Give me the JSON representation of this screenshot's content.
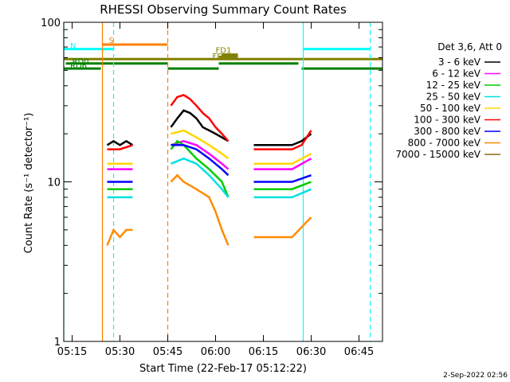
{
  "chart_data": {
    "type": "line",
    "title": "RHESSI Observing Summary Count Rates",
    "xlabel": "Start Time (22-Feb-17 05:12:22)",
    "ylabel": "Count Rate (s⁻¹ detector⁻¹)",
    "x_ticks": [
      "05:15",
      "05:30",
      "05:45",
      "06:00",
      "06:15",
      "06:30",
      "06:45"
    ],
    "xlim": [
      "05:12:22",
      "06:52:22"
    ],
    "ylim": [
      1,
      100
    ],
    "yscale": "log",
    "y_ticks": [
      "1",
      "10",
      "100"
    ],
    "legend_header": "Det 3,6, Att 0",
    "legend_position": "right",
    "series": [
      {
        "name": "3 - 6 keV",
        "color": "#000000",
        "segments": [
          [
            [
              "05:26",
              17
            ],
            [
              "05:28",
              18
            ],
            [
              "05:30",
              17
            ],
            [
              "05:32",
              18
            ],
            [
              "05:34",
              17
            ]
          ],
          [
            [
              "05:46",
              22
            ],
            [
              "05:48",
              25
            ],
            [
              "05:50",
              28
            ],
            [
              "05:52",
              27
            ],
            [
              "05:54",
              25
            ],
            [
              "05:56",
              22
            ],
            [
              "05:58",
              21
            ],
            [
              "06:00",
              20
            ],
            [
              "06:02",
              19
            ],
            [
              "06:04",
              18
            ]
          ],
          [
            [
              "06:12",
              17
            ],
            [
              "06:15",
              17
            ],
            [
              "06:18",
              17
            ],
            [
              "06:21",
              17
            ],
            [
              "06:24",
              17
            ],
            [
              "06:27",
              18
            ],
            [
              "06:30",
              20
            ]
          ]
        ]
      },
      {
        "name": "6 - 12 keV",
        "color": "#ff00ff",
        "segments": [
          [
            [
              "05:26",
              12
            ],
            [
              "05:30",
              12
            ],
            [
              "05:34",
              12
            ]
          ],
          [
            [
              "05:46",
              17
            ],
            [
              "05:50",
              18
            ],
            [
              "05:54",
              17
            ],
            [
              "05:58",
              15
            ],
            [
              "06:02",
              13
            ],
            [
              "06:04",
              12
            ]
          ],
          [
            [
              "06:12",
              12
            ],
            [
              "06:18",
              12
            ],
            [
              "06:24",
              12
            ],
            [
              "06:30",
              14
            ]
          ]
        ]
      },
      {
        "name": "12 - 25 keV",
        "color": "#00cc00",
        "segments": [
          [
            [
              "05:26",
              9
            ],
            [
              "05:30",
              9
            ],
            [
              "05:34",
              9
            ]
          ],
          [
            [
              "05:46",
              16
            ],
            [
              "05:48",
              18
            ],
            [
              "05:50",
              17
            ],
            [
              "05:54",
              14
            ],
            [
              "05:58",
              12
            ],
            [
              "06:02",
              10
            ],
            [
              "06:04",
              8
            ]
          ],
          [
            [
              "06:12",
              9
            ],
            [
              "06:18",
              9
            ],
            [
              "06:24",
              9
            ],
            [
              "06:30",
              10
            ]
          ]
        ]
      },
      {
        "name": "25 - 50 keV",
        "color": "#00e0e0",
        "segments": [
          [
            [
              "05:26",
              8
            ],
            [
              "05:30",
              8
            ],
            [
              "05:34",
              8
            ]
          ],
          [
            [
              "05:46",
              13
            ],
            [
              "05:50",
              14
            ],
            [
              "05:54",
              13
            ],
            [
              "05:58",
              11
            ],
            [
              "06:02",
              9
            ],
            [
              "06:04",
              8
            ]
          ],
          [
            [
              "06:12",
              8
            ],
            [
              "06:18",
              8
            ],
            [
              "06:24",
              8
            ],
            [
              "06:30",
              9
            ]
          ]
        ]
      },
      {
        "name": "50 - 100 keV",
        "color": "#ffd700",
        "segments": [
          [
            [
              "05:26",
              13
            ],
            [
              "05:30",
              13
            ],
            [
              "05:34",
              13
            ]
          ],
          [
            [
              "05:46",
              20
            ],
            [
              "05:50",
              21
            ],
            [
              "05:54",
              19
            ],
            [
              "05:58",
              17
            ],
            [
              "06:02",
              15
            ],
            [
              "06:04",
              14
            ]
          ],
          [
            [
              "06:12",
              13
            ],
            [
              "06:18",
              13
            ],
            [
              "06:24",
              13
            ],
            [
              "06:30",
              15
            ]
          ]
        ]
      },
      {
        "name": "100 - 300 keV",
        "color": "#ff0000",
        "segments": [
          [
            [
              "05:26",
              16
            ],
            [
              "05:30",
              16
            ],
            [
              "05:34",
              17
            ]
          ],
          [
            [
              "05:46",
              30
            ],
            [
              "05:48",
              34
            ],
            [
              "05:50",
              35
            ],
            [
              "05:52",
              33
            ],
            [
              "05:54",
              30
            ],
            [
              "05:56",
              27
            ],
            [
              "05:58",
              25
            ],
            [
              "06:00",
              22
            ],
            [
              "06:02",
              20
            ],
            [
              "06:04",
              18
            ]
          ],
          [
            [
              "06:12",
              16
            ],
            [
              "06:18",
              16
            ],
            [
              "06:24",
              16
            ],
            [
              "06:27",
              17
            ],
            [
              "06:30",
              21
            ]
          ]
        ]
      },
      {
        "name": "300 - 800 keV",
        "color": "#0000ff",
        "segments": [
          [
            [
              "05:26",
              10
            ],
            [
              "05:30",
              10
            ],
            [
              "05:34",
              10
            ]
          ],
          [
            [
              "05:46",
              17
            ],
            [
              "05:50",
              17
            ],
            [
              "05:54",
              16
            ],
            [
              "05:58",
              14
            ],
            [
              "06:02",
              12
            ],
            [
              "06:04",
              11
            ]
          ],
          [
            [
              "06:12",
              10
            ],
            [
              "06:18",
              10
            ],
            [
              "06:24",
              10
            ],
            [
              "06:30",
              11
            ]
          ]
        ]
      },
      {
        "name": "800 - 7000 keV",
        "color": "#ff8c00",
        "segments": [
          [
            [
              "05:26",
              4
            ],
            [
              "05:28",
              5
            ],
            [
              "05:30",
              4.5
            ],
            [
              "05:32",
              5
            ],
            [
              "05:34",
              5
            ]
          ],
          [
            [
              "05:46",
              10
            ],
            [
              "05:48",
              11
            ],
            [
              "05:50",
              10
            ],
            [
              "05:54",
              9
            ],
            [
              "05:58",
              8
            ],
            [
              "06:00",
              6.5
            ],
            [
              "06:02",
              5
            ],
            [
              "06:04",
              4
            ]
          ],
          [
            [
              "06:12",
              4.5
            ],
            [
              "06:18",
              4.5
            ],
            [
              "06:24",
              4.5
            ],
            [
              "06:30",
              6
            ]
          ]
        ]
      },
      {
        "name": "7000 - 15000 keV",
        "color": "#8b6914",
        "segments": []
      }
    ],
    "flag_bars": [
      {
        "label": "S",
        "color": "#ff8000",
        "start": "05:24:30",
        "end": "05:45:00",
        "y": 40,
        "label_y": 37
      },
      {
        "label": "N",
        "color": "#00ffff",
        "start": "05:12:22",
        "end": "05:28:00",
        "y": 48,
        "label_y": 47
      },
      {
        "label": "",
        "color": "#00ffff",
        "start": "06:27:30",
        "end": "06:48:30",
        "y": 48,
        "label_y": 0
      },
      {
        "label": "FD1",
        "color": "#808000",
        "start": "06:02:00",
        "end": "06:07:00",
        "y": 58,
        "label_y": 55
      },
      {
        "label": "FD2",
        "color": "#808000",
        "start": "06:01:00",
        "end": "06:07:00",
        "y": 62,
        "label_y": 66
      },
      {
        "label": "",
        "color": "#808000",
        "start": "05:12:22",
        "end": "06:52:22",
        "y": 66,
        "label_y": 0
      },
      {
        "label": "RD0",
        "color": "#008000",
        "start": "05:13:00",
        "end": "05:45:00",
        "y": 74,
        "label_y": 75
      },
      {
        "label": "",
        "color": "#008000",
        "start": "06:01:00",
        "end": "06:26:00",
        "y": 74,
        "label_y": 0
      },
      {
        "label": "RD6",
        "color": "#008000",
        "start": "05:12:22",
        "end": "05:24:00",
        "y": 83,
        "label_y": 83
      },
      {
        "label": "",
        "color": "#008000",
        "start": "05:45:00",
        "end": "06:01:00",
        "y": 83,
        "label_y": 0
      },
      {
        "label": "",
        "color": "#008000",
        "start": "06:27:00",
        "end": "06:52:22",
        "y": 83,
        "label_y": 0
      }
    ],
    "vertical_markers": [
      {
        "time": "05:12:22",
        "color": "#00ffff",
        "dashed": false
      },
      {
        "time": "05:24:30",
        "color": "#ff8000",
        "dashed": false
      },
      {
        "time": "05:28:00",
        "color": "#00ffff",
        "dashed": true
      },
      {
        "time": "05:45:00",
        "color": "#ff8000",
        "dashed": true
      },
      {
        "time": "06:27:30",
        "color": "#00ffff",
        "dashed": false
      },
      {
        "time": "06:48:30",
        "color": "#00ffff",
        "dashed": true
      }
    ],
    "timestamp": "2-Sep-2022 02:56"
  }
}
